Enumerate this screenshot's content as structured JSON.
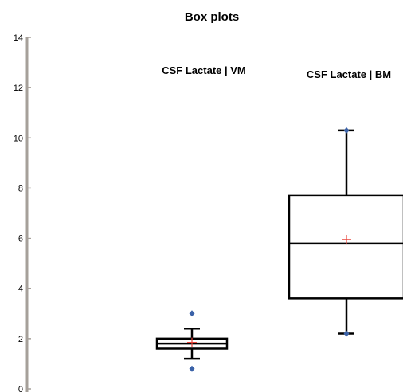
{
  "chart_data": {
    "type": "box",
    "title": "Box plots",
    "ylim": [
      0,
      14
    ],
    "yticks": [
      0,
      2,
      4,
      6,
      8,
      10,
      12,
      14
    ],
    "grid": false,
    "colors": {
      "axis": "#a6a09a",
      "box": "#000000",
      "outlier": "#3b62a8",
      "mean": "#e8443a"
    },
    "series": [
      {
        "name": "CSF Lactate | VM",
        "whisker_low": 1.2,
        "q1": 1.6,
        "median": 1.8,
        "q3": 2.0,
        "whisker_high": 2.4,
        "mean": 1.85,
        "outliers": [
          3.0,
          0.8
        ]
      },
      {
        "name": "CSF Lactate | BM",
        "whisker_low": 2.2,
        "q1": 3.6,
        "median": 5.8,
        "q3": 7.7,
        "whisker_high": 10.3,
        "mean": 5.95,
        "outliers": [
          10.3,
          2.2
        ]
      }
    ]
  }
}
